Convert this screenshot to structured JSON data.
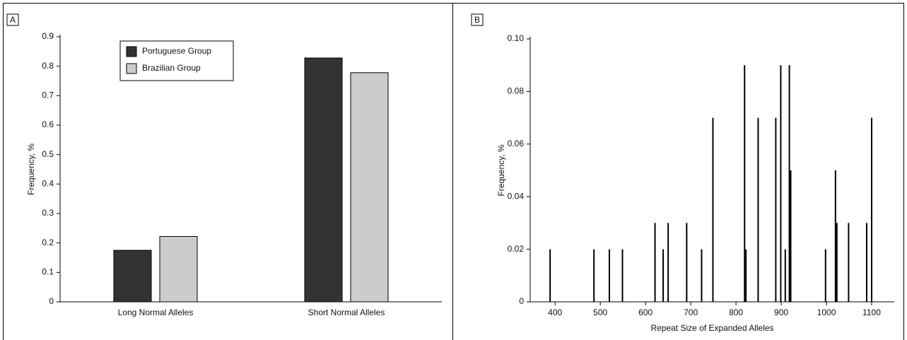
{
  "chart_data": [
    {
      "type": "bar",
      "panel": "A",
      "ylabel": "Frequency, %",
      "categories": [
        "Long Normal Alleles",
        "Short Normal Alleles"
      ],
      "series": [
        {
          "name": "Portuguese Group",
          "color": "#333333",
          "values": [
            0.175,
            0.828
          ]
        },
        {
          "name": "Brazilian Group",
          "color": "#cccccc",
          "values": [
            0.222,
            0.778
          ]
        }
      ],
      "ylim": [
        0,
        0.9
      ],
      "yticks": [
        0,
        0.1,
        0.2,
        0.3,
        0.4,
        0.5,
        0.6,
        0.7,
        0.8,
        0.9
      ]
    },
    {
      "type": "stem",
      "panel": "B",
      "ylabel": "Frequency, %",
      "xlabel": "Repeat Size of Expanded Alleles",
      "color": "#000000",
      "x": [
        389,
        486,
        520,
        549,
        621,
        639,
        650,
        691,
        724,
        749,
        819,
        822,
        849,
        888,
        899,
        909,
        918,
        921,
        998,
        1020,
        1023,
        1049,
        1089,
        1100
      ],
      "values": [
        0.02,
        0.02,
        0.02,
        0.02,
        0.03,
        0.02,
        0.03,
        0.03,
        0.02,
        0.07,
        0.09,
        0.02,
        0.07,
        0.07,
        0.09,
        0.02,
        0.09,
        0.05,
        0.02,
        0.05,
        0.03,
        0.03,
        0.03,
        0.07
      ],
      "xlim": [
        345,
        1150
      ],
      "xticks": [
        400,
        500,
        600,
        700,
        800,
        900,
        1000,
        1100
      ],
      "ylim": [
        0,
        0.1
      ],
      "yticks": [
        0,
        0.02,
        0.04,
        0.06,
        0.08,
        {
          "value": 0.1,
          "label": "0.10"
        }
      ]
    }
  ]
}
